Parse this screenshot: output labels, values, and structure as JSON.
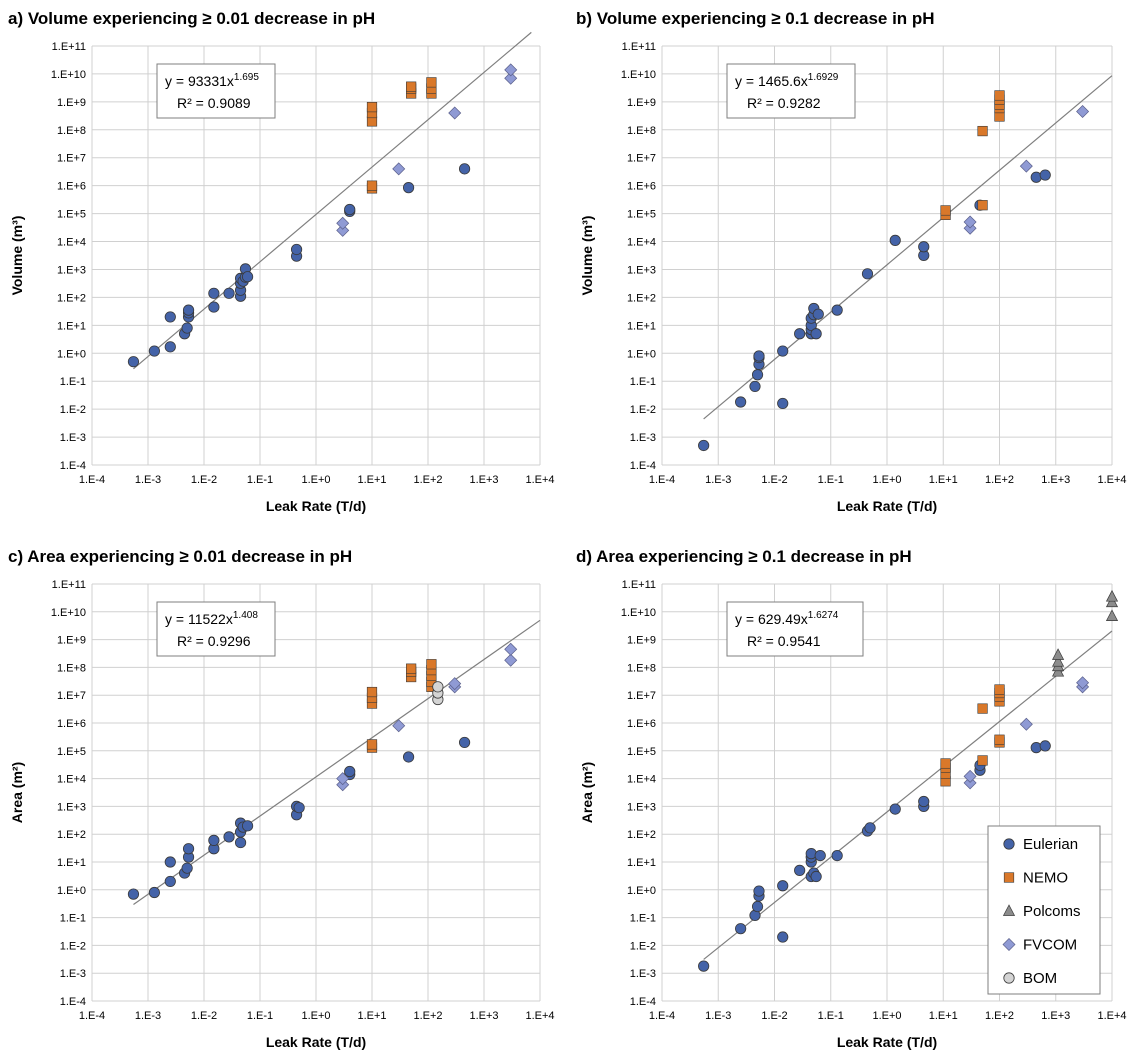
{
  "colors": {
    "Eulerian": "#4463a8",
    "NEMO": "#d9782a",
    "Polcoms": "#8c8c8c",
    "FVCOM": "#8f9ad4",
    "BOM": "#d4d4d4",
    "grid": "#d0d0d0",
    "fit": "#7f7f7f"
  },
  "legend": {
    "items": [
      {
        "name": "Eulerian",
        "marker": "circle"
      },
      {
        "name": "NEMO",
        "marker": "square"
      },
      {
        "name": "Polcoms",
        "marker": "triangle"
      },
      {
        "name": "FVCOM",
        "marker": "diamond"
      },
      {
        "name": "BOM",
        "marker": "circle"
      }
    ]
  },
  "chart_data": [
    {
      "panel": "a",
      "type": "scatter",
      "title": "a) Volume experiencing ≥ 0.01 decrease in pH",
      "xlabel": "Leak Rate (T/d)",
      "ylabel": "Volume (m³)",
      "xscale": "log",
      "yscale": "log",
      "xlim": [
        0.0001,
        10000
      ],
      "ylim": [
        0.0001,
        100000000000
      ],
      "x_ticks": [
        "1.E-4",
        "1.E-3",
        "1.E-2",
        "1.E-1",
        "1.E+0",
        "1.E+1",
        "1.E+2",
        "1.E+3",
        "1.E+4"
      ],
      "y_ticks": [
        "1.E-4",
        "1.E-3",
        "1.E-2",
        "1.E-1",
        "1.E+0",
        "1.E+1",
        "1.E+2",
        "1.E+3",
        "1.E+4",
        "1.E+5",
        "1.E+6",
        "1.E+7",
        "1.E+8",
        "1.E+9",
        "1.E+10",
        "1.E+11"
      ],
      "grid": true,
      "fit": {
        "coef": 93331,
        "exp": 1.695,
        "x_range": [
          0.00055,
          7000
        ],
        "equation_prefix": "y = 93331x",
        "equation_exp": "1.695",
        "r2": "R² = 0.9089"
      },
      "series": [
        {
          "name": "Eulerian",
          "points": [
            [
              0.00055,
              0.5
            ],
            [
              0.0013,
              1.2
            ],
            [
              0.0025,
              1.7
            ],
            [
              0.0025,
              20
            ],
            [
              0.0045,
              5
            ],
            [
              0.005,
              8
            ],
            [
              0.0053,
              20
            ],
            [
              0.0053,
              28
            ],
            [
              0.0053,
              35
            ],
            [
              0.015,
              45
            ],
            [
              0.015,
              140
            ],
            [
              0.028,
              140
            ],
            [
              0.045,
              110
            ],
            [
              0.045,
              180
            ],
            [
              0.045,
              320
            ],
            [
              0.045,
              480
            ],
            [
              0.05,
              380
            ],
            [
              0.055,
              530
            ],
            [
              0.055,
              1050
            ],
            [
              0.06,
              550
            ],
            [
              0.45,
              3000
            ],
            [
              0.45,
              5200
            ],
            [
              4,
              120000
            ],
            [
              4,
              140000
            ],
            [
              45,
              850000
            ],
            [
              450,
              4000000
            ]
          ]
        },
        {
          "name": "NEMO",
          "points": [
            [
              10,
              200000000
            ],
            [
              10,
              400000000
            ],
            [
              10,
              650000000
            ],
            [
              10,
              800000
            ],
            [
              10,
              1000000
            ],
            [
              50,
              2000000000
            ],
            [
              50,
              3000000000
            ],
            [
              50,
              3500000000
            ],
            [
              115,
              2000000000
            ],
            [
              115,
              3000000000
            ],
            [
              115,
              5000000000
            ]
          ]
        },
        {
          "name": "FVCOM",
          "points": [
            [
              3,
              25000
            ],
            [
              3,
              45000
            ],
            [
              30,
              4000000
            ],
            [
              300,
              400000000
            ],
            [
              3000,
              7000000000
            ],
            [
              3000,
              14000000000
            ]
          ]
        }
      ]
    },
    {
      "panel": "b",
      "type": "scatter",
      "title": "b) Volume experiencing ≥ 0.1 decrease in pH",
      "xlabel": "Leak Rate (T/d)",
      "ylabel": "Volume (m³)",
      "xscale": "log",
      "yscale": "log",
      "xlim": [
        0.0001,
        10000
      ],
      "ylim": [
        0.0001,
        100000000000
      ],
      "x_ticks": [
        "1.E-4",
        "1.E-3",
        "1.E-2",
        "1.E-1",
        "1.E+0",
        "1.E+1",
        "1.E+2",
        "1.E+3",
        "1.E+4"
      ],
      "y_ticks": [
        "1.E-4",
        "1.E-3",
        "1.E-2",
        "1.E-1",
        "1.E+0",
        "1.E+1",
        "1.E+2",
        "1.E+3",
        "1.E+4",
        "1.E+5",
        "1.E+6",
        "1.E+7",
        "1.E+8",
        "1.E+9",
        "1.E+10",
        "1.E+11"
      ],
      "grid": true,
      "fit": {
        "coef": 1465.6,
        "exp": 1.6929,
        "x_range": [
          0.00055,
          10000
        ],
        "equation_prefix": "y = 1465.6x",
        "equation_exp": "1.6929",
        "r2": "R² = 0.9282"
      },
      "series": [
        {
          "name": "Eulerian",
          "points": [
            [
              0.00055,
              0.0005
            ],
            [
              0.0025,
              0.018
            ],
            [
              0.0045,
              0.065
            ],
            [
              0.005,
              0.17
            ],
            [
              0.0053,
              0.4
            ],
            [
              0.0053,
              0.7
            ],
            [
              0.0053,
              0.8
            ],
            [
              0.014,
              0.016
            ],
            [
              0.014,
              1.2
            ],
            [
              0.028,
              5
            ],
            [
              0.045,
              5
            ],
            [
              0.045,
              7
            ],
            [
              0.045,
              10
            ],
            [
              0.045,
              18
            ],
            [
              0.05,
              24
            ],
            [
              0.05,
              40
            ],
            [
              0.055,
              5
            ],
            [
              0.06,
              25
            ],
            [
              0.13,
              35
            ],
            [
              0.45,
              700
            ],
            [
              1.4,
              11000
            ],
            [
              4.5,
              3200
            ],
            [
              4.5,
              6500
            ],
            [
              45,
              200000
            ],
            [
              450,
              2000000
            ],
            [
              650,
              2400000
            ]
          ]
        },
        {
          "name": "NEMO",
          "points": [
            [
              11,
              90000
            ],
            [
              11,
              130000
            ],
            [
              50,
              200000
            ],
            [
              50,
              90000000
            ],
            [
              100,
              300000000
            ],
            [
              100,
              600000000
            ],
            [
              100,
              800000000
            ],
            [
              100,
              1200000000
            ],
            [
              100,
              1700000000
            ]
          ]
        },
        {
          "name": "FVCOM",
          "points": [
            [
              30,
              30000
            ],
            [
              30,
              50000
            ],
            [
              300,
              5000000
            ],
            [
              3000,
              450000000
            ]
          ]
        }
      ]
    },
    {
      "panel": "c",
      "type": "scatter",
      "title": "c) Area experiencing ≥ 0.01 decrease in pH",
      "xlabel": "Leak Rate (T/d)",
      "ylabel": "Area (m²)",
      "xscale": "log",
      "yscale": "log",
      "xlim": [
        0.0001,
        10000
      ],
      "ylim": [
        0.0001,
        100000000000
      ],
      "x_ticks": [
        "1.E-4",
        "1.E-3",
        "1.E-2",
        "1.E-1",
        "1.E+0",
        "1.E+1",
        "1.E+2",
        "1.E+3",
        "1.E+4"
      ],
      "y_ticks": [
        "1.E-4",
        "1.E-3",
        "1.E-2",
        "1.E-1",
        "1.E+0",
        "1.E+1",
        "1.E+2",
        "1.E+3",
        "1.E+4",
        "1.E+5",
        "1.E+6",
        "1.E+7",
        "1.E+8",
        "1.E+9",
        "1.E+10",
        "1.E+11"
      ],
      "grid": true,
      "fit": {
        "coef": 11522,
        "exp": 1.408,
        "x_range": [
          0.00055,
          10000
        ],
        "equation_prefix": "y = 11522x",
        "equation_exp": "1.408",
        "r2": "R² = 0.9296"
      },
      "series": [
        {
          "name": "Eulerian",
          "points": [
            [
              0.00055,
              0.7
            ],
            [
              0.0013,
              0.8
            ],
            [
              0.0025,
              2
            ],
            [
              0.0025,
              10
            ],
            [
              0.0045,
              4
            ],
            [
              0.005,
              6
            ],
            [
              0.0053,
              15
            ],
            [
              0.0053,
              30
            ],
            [
              0.015,
              30
            ],
            [
              0.015,
              60
            ],
            [
              0.028,
              80
            ],
            [
              0.045,
              50
            ],
            [
              0.045,
              120
            ],
            [
              0.045,
              250
            ],
            [
              0.05,
              180
            ],
            [
              0.06,
              200
            ],
            [
              0.45,
              500
            ],
            [
              0.45,
              1000
            ],
            [
              0.5,
              900
            ],
            [
              4,
              14000
            ],
            [
              4,
              18000
            ],
            [
              45,
              60000
            ],
            [
              450,
              200000
            ]
          ]
        },
        {
          "name": "NEMO",
          "points": [
            [
              10,
              130000
            ],
            [
              10,
              170000
            ],
            [
              10,
              5000000
            ],
            [
              10,
              8000000
            ],
            [
              10,
              13000000
            ],
            [
              50,
              45000000
            ],
            [
              50,
              70000000
            ],
            [
              50,
              90000000
            ],
            [
              115,
              20000000
            ],
            [
              115,
              30000000
            ],
            [
              115,
              50000000
            ],
            [
              115,
              80000000
            ],
            [
              115,
              130000000
            ]
          ]
        },
        {
          "name": "FVCOM",
          "points": [
            [
              3,
              6000
            ],
            [
              3,
              10000
            ],
            [
              30,
              800000
            ],
            [
              300,
              20000000
            ],
            [
              300,
              26000000
            ],
            [
              3000,
              180000000
            ],
            [
              3000,
              450000000
            ]
          ]
        },
        {
          "name": "BOM",
          "points": [
            [
              150,
              7000000
            ],
            [
              150,
              12000000
            ],
            [
              150,
              20000000
            ]
          ]
        }
      ]
    },
    {
      "panel": "d",
      "type": "scatter",
      "title": "d) Area experiencing ≥ 0.1 decrease in pH",
      "xlabel": "Leak Rate (T/d)",
      "ylabel": "Area (m²)",
      "xscale": "log",
      "yscale": "log",
      "xlim": [
        0.0001,
        10000
      ],
      "ylim": [
        0.0001,
        100000000000
      ],
      "x_ticks": [
        "1.E-4",
        "1.E-3",
        "1.E-2",
        "1.E-1",
        "1.E+0",
        "1.E+1",
        "1.E+2",
        "1.E+3",
        "1.E+4"
      ],
      "y_ticks": [
        "1.E-4",
        "1.E-3",
        "1.E-2",
        "1.E-1",
        "1.E+0",
        "1.E+1",
        "1.E+2",
        "1.E+3",
        "1.E+4",
        "1.E+5",
        "1.E+6",
        "1.E+7",
        "1.E+8",
        "1.E+9",
        "1.E+10",
        "1.E+11"
      ],
      "grid": true,
      "fit": {
        "coef": 629.49,
        "exp": 1.6274,
        "x_range": [
          0.00055,
          10000
        ],
        "equation_prefix": "y = 629.49x",
        "equation_exp": "1.6274",
        "r2": "R² = 0.9541"
      },
      "legend_position": "bottom-right",
      "series": [
        {
          "name": "Eulerian",
          "points": [
            [
              0.00055,
              0.0018
            ],
            [
              0.0025,
              0.04
            ],
            [
              0.0045,
              0.12
            ],
            [
              0.005,
              0.25
            ],
            [
              0.0053,
              0.6
            ],
            [
              0.0053,
              0.9
            ],
            [
              0.014,
              0.02
            ],
            [
              0.014,
              1.4
            ],
            [
              0.028,
              5
            ],
            [
              0.045,
              3
            ],
            [
              0.045,
              10
            ],
            [
              0.045,
              15
            ],
            [
              0.045,
              20
            ],
            [
              0.05,
              4
            ],
            [
              0.055,
              3
            ],
            [
              0.065,
              17
            ],
            [
              0.13,
              17
            ],
            [
              0.45,
              130
            ],
            [
              0.5,
              170
            ],
            [
              1.4,
              800
            ],
            [
              4.5,
              1000
            ],
            [
              4.5,
              1500
            ],
            [
              45,
              20000
            ],
            [
              45,
              30000
            ],
            [
              450,
              130000
            ],
            [
              650,
              150000
            ]
          ]
        },
        {
          "name": "NEMO",
          "points": [
            [
              11,
              8000
            ],
            [
              11,
              15000
            ],
            [
              11,
              25000
            ],
            [
              11,
              35000
            ],
            [
              50,
              45000
            ],
            [
              50,
              3300000
            ],
            [
              100,
              200000
            ],
            [
              100,
              250000
            ],
            [
              100,
              6000000
            ],
            [
              100,
              9000000
            ],
            [
              100,
              12000000
            ],
            [
              100,
              16000000
            ]
          ]
        },
        {
          "name": "Polcoms",
          "points": [
            [
              1100,
              70000000
            ],
            [
              1100,
              110000000
            ],
            [
              1100,
              160000000
            ],
            [
              1100,
              280000000
            ],
            [
              10000,
              7000000000
            ],
            [
              10000,
              22000000000
            ],
            [
              10000,
              35000000000
            ]
          ]
        },
        {
          "name": "FVCOM",
          "points": [
            [
              30,
              7000
            ],
            [
              30,
              12000
            ],
            [
              300,
              900000
            ],
            [
              3000,
              20000000
            ],
            [
              3000,
              28000000
            ]
          ]
        }
      ]
    }
  ]
}
